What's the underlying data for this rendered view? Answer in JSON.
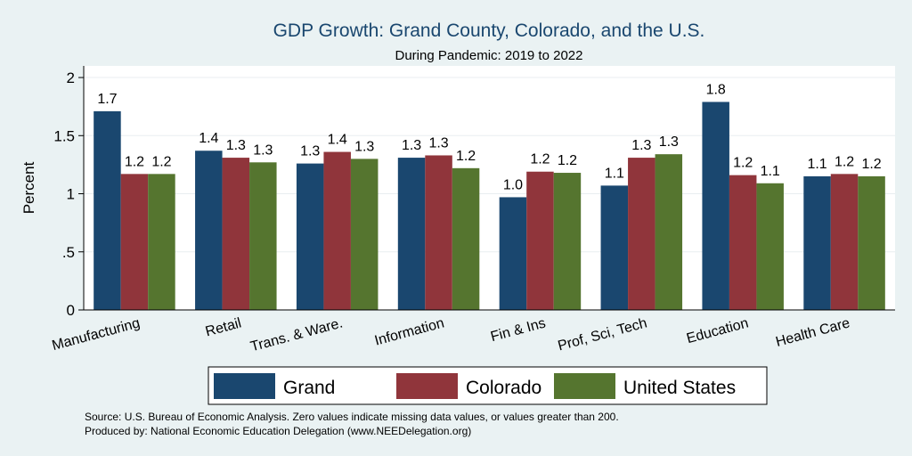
{
  "chart_data": {
    "type": "bar",
    "title": "GDP Growth: Grand County, Colorado, and the U.S.",
    "subtitle": "During Pandemic: 2019 to 2022",
    "xlabel": "",
    "ylabel": "Percent",
    "ylim": [
      0,
      2.1
    ],
    "yticks": [
      {
        "value": 0,
        "label": "0"
      },
      {
        "value": 0.5,
        "label": ".5"
      },
      {
        "value": 1,
        "label": "1"
      },
      {
        "value": 1.5,
        "label": "1.5"
      },
      {
        "value": 2,
        "label": "2"
      }
    ],
    "grid": true,
    "categories": [
      "Manufacturing",
      "Retail",
      "Trans. & Ware.",
      "Information",
      "Fin & Ins",
      "Prof, Sci, Tech",
      "Education",
      "Health Care"
    ],
    "series": [
      {
        "name": "Grand",
        "color": "#1a476f",
        "values": [
          1.71,
          1.37,
          1.26,
          1.31,
          0.97,
          1.07,
          1.79,
          1.15
        ],
        "labels": [
          "1.7",
          "1.4",
          "1.3",
          "1.3",
          "1.0",
          "1.1",
          "1.8",
          "1.1"
        ]
      },
      {
        "name": "Colorado",
        "color": "#90353b",
        "values": [
          1.17,
          1.31,
          1.36,
          1.33,
          1.19,
          1.31,
          1.16,
          1.17
        ],
        "labels": [
          "1.2",
          "1.3",
          "1.4",
          "1.3",
          "1.2",
          "1.3",
          "1.2",
          "1.2"
        ]
      },
      {
        "name": "United States",
        "color": "#55752f",
        "values": [
          1.17,
          1.27,
          1.3,
          1.22,
          1.18,
          1.34,
          1.09,
          1.15
        ],
        "labels": [
          "1.2",
          "1.3",
          "1.3",
          "1.2",
          "1.2",
          "1.3",
          "1.1",
          "1.2"
        ]
      }
    ],
    "legend": "bottom"
  },
  "footer": {
    "source": "Source: U.S. Bureau of Economic Analysis. Zero values indicate missing data values, or values greater than 200.",
    "produced_by": "Produced by: National Economic Education Delegation (www.NEEDelegation.org)"
  }
}
